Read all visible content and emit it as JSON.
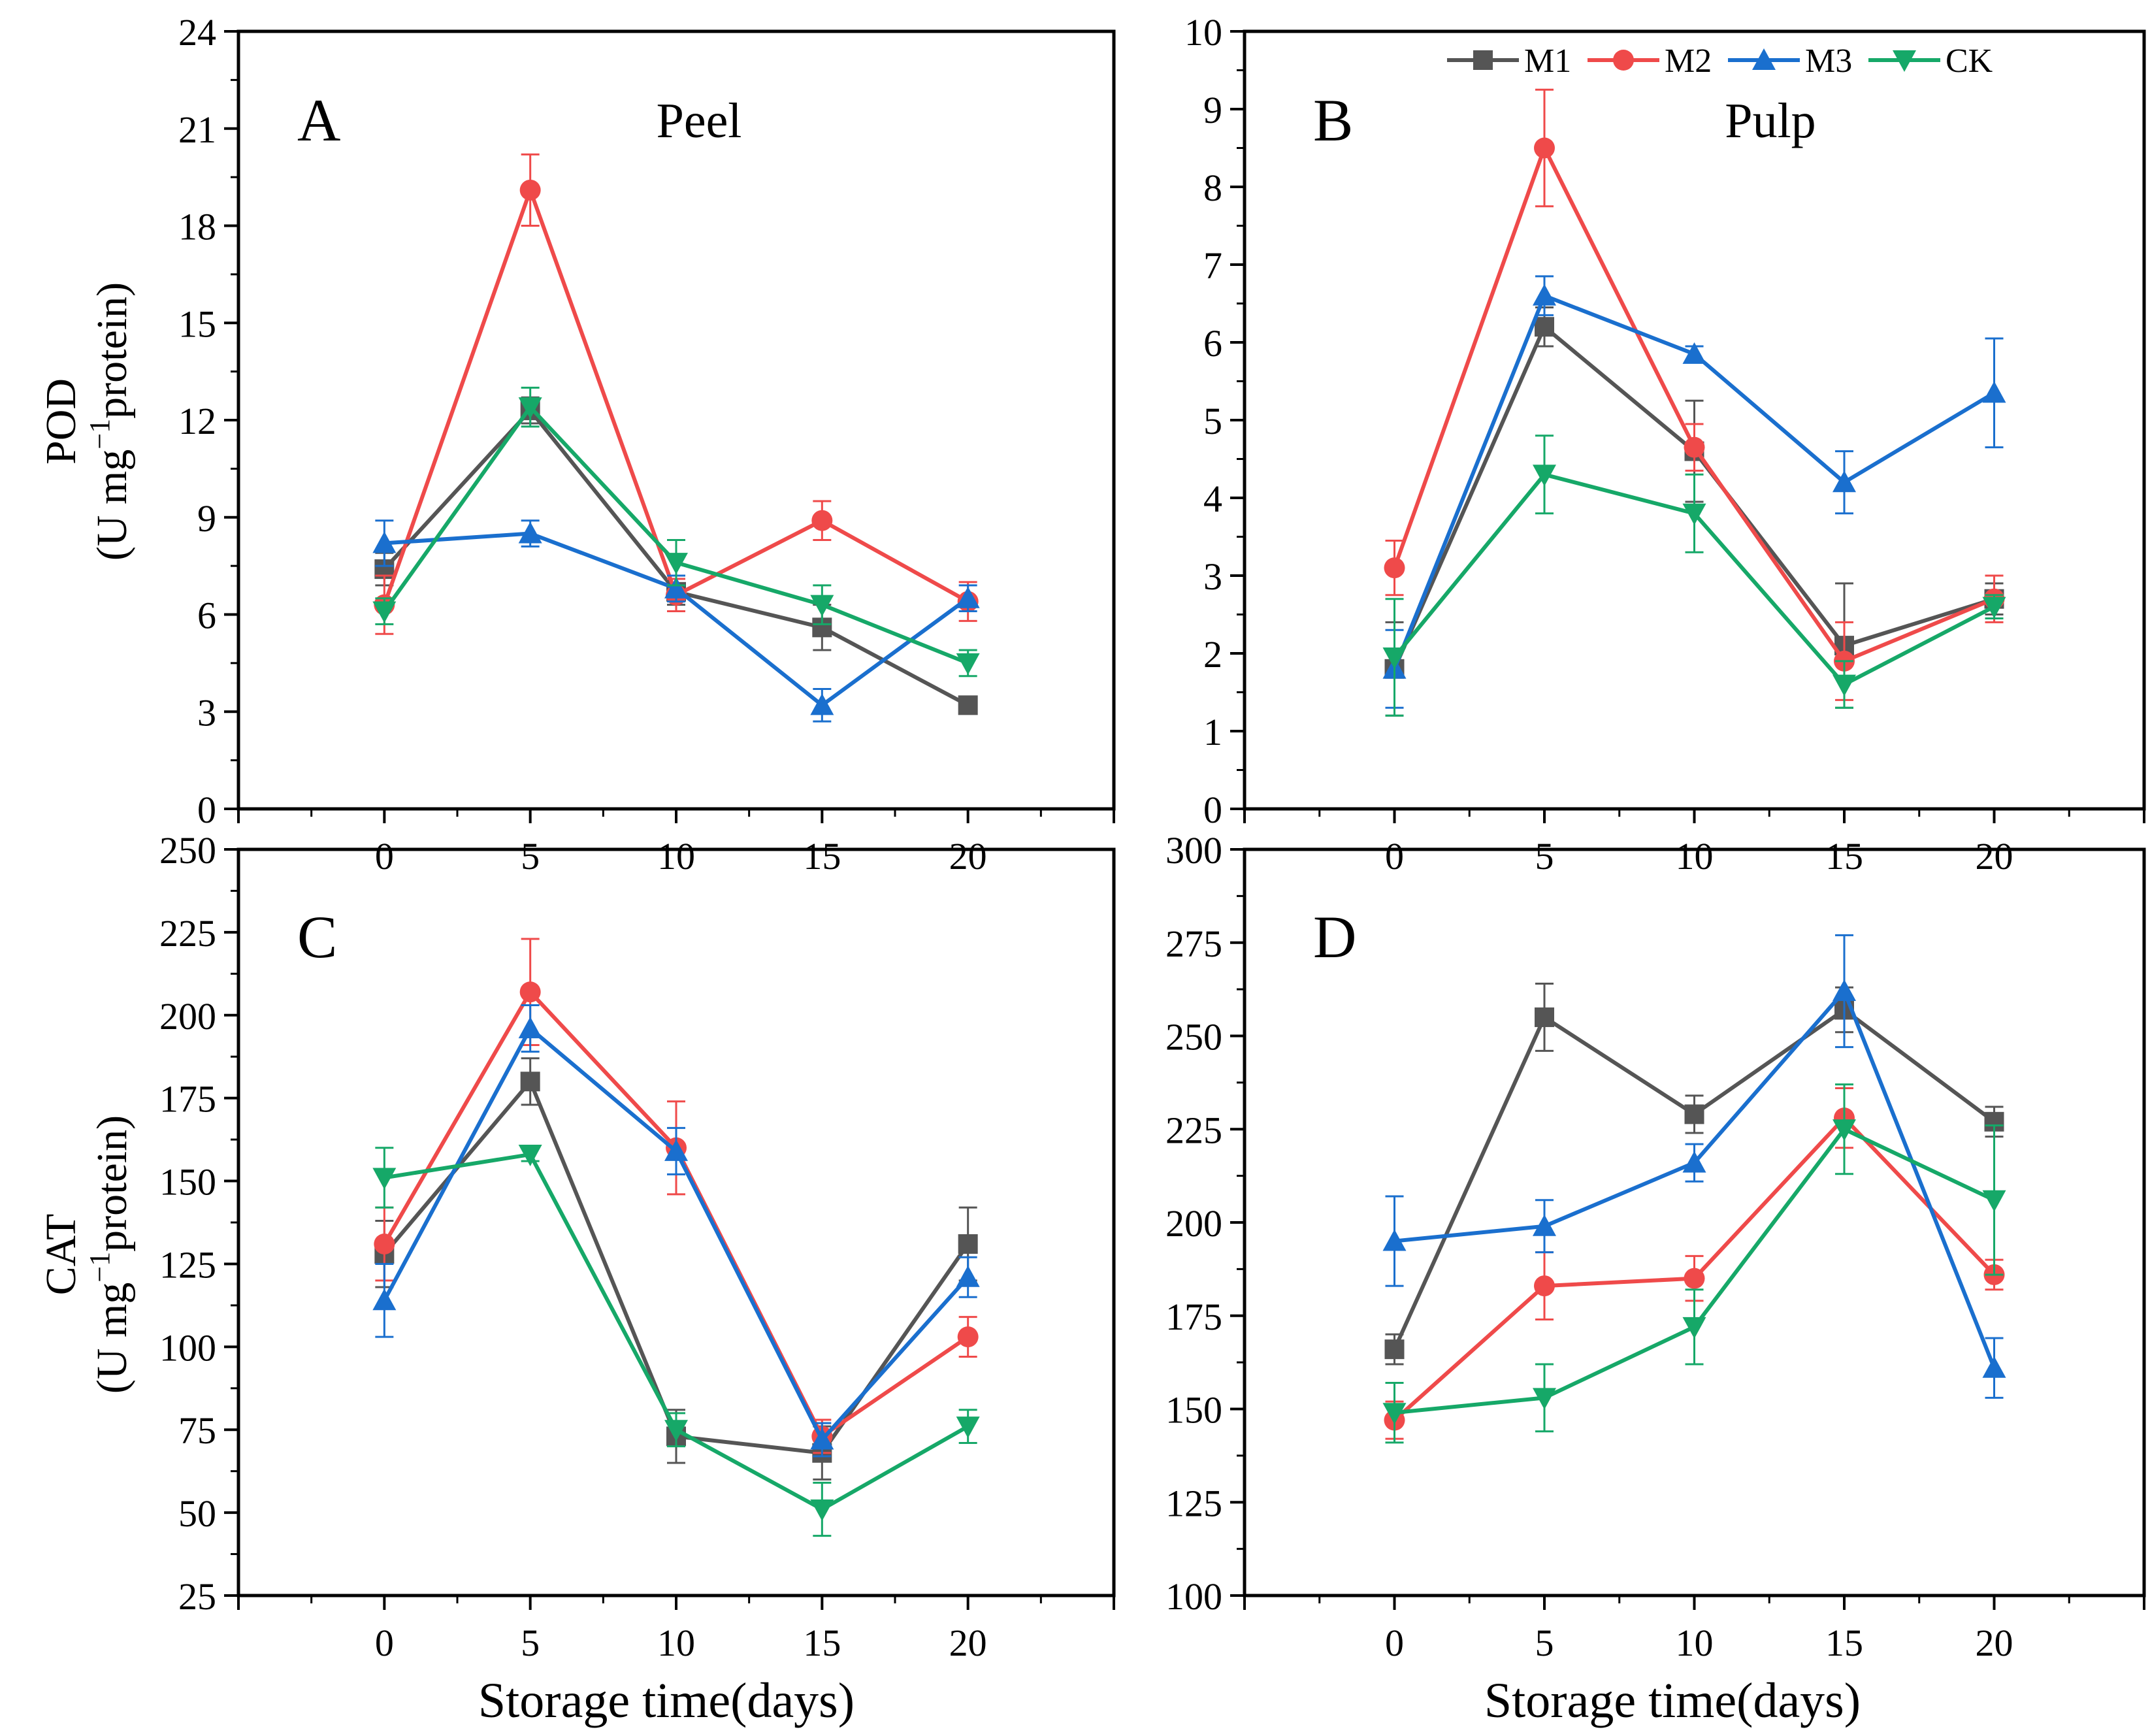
{
  "figure": {
    "legend_labels": [
      "M1",
      "M2",
      "M3",
      "CK"
    ],
    "x_axis_label": "Storage time(days)",
    "row_labels": [
      {
        "line1": "POD",
        "line2_pre": "(U mg",
        "line2_sup": "−1",
        "line2_post": "protein)"
      },
      {
        "line1": "CAT",
        "line2_pre": "(U mg",
        "line2_sup": "−1",
        "line2_post": "protein)"
      }
    ]
  },
  "chart_data": [
    {
      "type": "line",
      "panel": "A",
      "title": "Peel",
      "xlabel": "Storage time(days)",
      "ylabel": "POD (U mg-1 protein)",
      "xlim": [
        -5,
        25
      ],
      "ylim": [
        0,
        24
      ],
      "xticks": [
        0,
        5,
        10,
        15,
        20
      ],
      "yticks": [
        0,
        3,
        6,
        9,
        12,
        15,
        18,
        21,
        24
      ],
      "x": [
        0,
        5,
        10,
        15,
        20
      ],
      "series": [
        {
          "name": "M1",
          "color": "#555555",
          "marker": "square",
          "values": [
            7.4,
            12.3,
            6.7,
            5.6,
            3.2
          ],
          "errors": [
            0.5,
            0.4,
            0.4,
            0.7,
            0.2
          ]
        },
        {
          "name": "M2",
          "color": "#ef4a4a",
          "marker": "circle",
          "values": [
            6.3,
            19.1,
            6.6,
            8.9,
            6.4
          ],
          "errors": [
            0.9,
            1.1,
            0.5,
            0.6,
            0.6
          ]
        },
        {
          "name": "M3",
          "color": "#1a6fce",
          "marker": "triangle",
          "values": [
            8.2,
            8.5,
            6.8,
            3.2,
            6.5
          ],
          "errors": [
            0.7,
            0.4,
            0.4,
            0.5,
            0.4
          ]
        },
        {
          "name": "CK",
          "color": "#16a868",
          "marker": "tri-down",
          "values": [
            6.1,
            12.4,
            7.6,
            6.3,
            4.5
          ],
          "errors": [
            0.4,
            0.6,
            0.7,
            0.6,
            0.4
          ]
        }
      ]
    },
    {
      "type": "line",
      "panel": "B",
      "title": "Pulp",
      "xlabel": "Storage time(days)",
      "ylabel": "POD (U mg-1 protein)",
      "xlim": [
        -5,
        25
      ],
      "ylim": [
        0,
        10
      ],
      "xticks": [
        0,
        5,
        10,
        15,
        20
      ],
      "yticks": [
        0,
        1,
        2,
        3,
        4,
        5,
        6,
        7,
        8,
        9,
        10
      ],
      "x": [
        0,
        5,
        10,
        15,
        20
      ],
      "series": [
        {
          "name": "M1",
          "color": "#555555",
          "marker": "square",
          "values": [
            1.8,
            6.2,
            4.6,
            2.1,
            2.7
          ],
          "errors": [
            0.6,
            0.25,
            0.65,
            0.8,
            0.2
          ]
        },
        {
          "name": "M2",
          "color": "#ef4a4a",
          "marker": "circle",
          "values": [
            3.1,
            8.5,
            4.65,
            1.9,
            2.7
          ],
          "errors": [
            0.35,
            0.75,
            0.3,
            0.5,
            0.3
          ]
        },
        {
          "name": "M3",
          "color": "#1a6fce",
          "marker": "triangle",
          "values": [
            1.8,
            6.6,
            5.85,
            4.2,
            5.35
          ],
          "errors": [
            0.5,
            0.25,
            0.1,
            0.4,
            0.7
          ]
        },
        {
          "name": "CK",
          "color": "#16a868",
          "marker": "tri-down",
          "values": [
            1.95,
            4.3,
            3.8,
            1.6,
            2.6
          ],
          "errors": [
            0.75,
            0.5,
            0.5,
            0.3,
            0.15
          ]
        }
      ]
    },
    {
      "type": "line",
      "panel": "C",
      "title": "",
      "xlabel": "Storage time(days)",
      "ylabel": "CAT (U mg-1 protein)",
      "xlim": [
        -5,
        25
      ],
      "ylim": [
        25,
        250
      ],
      "xticks": [
        0,
        5,
        10,
        15,
        20
      ],
      "yticks": [
        25,
        50,
        75,
        100,
        125,
        150,
        175,
        200,
        225,
        250
      ],
      "x": [
        0,
        5,
        10,
        15,
        20
      ],
      "series": [
        {
          "name": "M1",
          "color": "#555555",
          "marker": "square",
          "values": [
            128,
            180,
            73,
            68,
            131
          ],
          "errors": [
            10,
            7,
            8,
            8,
            11
          ]
        },
        {
          "name": "M2",
          "color": "#ef4a4a",
          "marker": "circle",
          "values": [
            131,
            207,
            160,
            73,
            103
          ],
          "errors": [
            11,
            16,
            14,
            5,
            6
          ]
        },
        {
          "name": "M3",
          "color": "#1a6fce",
          "marker": "triangle",
          "values": [
            114,
            196,
            159,
            72,
            121
          ],
          "errors": [
            11,
            7,
            7,
            5,
            6
          ]
        },
        {
          "name": "CK",
          "color": "#16a868",
          "marker": "tri-down",
          "values": [
            151,
            158,
            75,
            51,
            76
          ],
          "errors": [
            9,
            2,
            5,
            8,
            5
          ]
        }
      ]
    },
    {
      "type": "line",
      "panel": "D",
      "title": "",
      "xlabel": "Storage time(days)",
      "ylabel": "CAT (U mg-1 protein)",
      "xlim": [
        -5,
        25
      ],
      "ylim": [
        100,
        300
      ],
      "xticks": [
        0,
        5,
        10,
        15,
        20
      ],
      "yticks": [
        100,
        125,
        150,
        175,
        200,
        225,
        250,
        275,
        300
      ],
      "x": [
        0,
        5,
        10,
        15,
        20
      ],
      "series": [
        {
          "name": "M1",
          "color": "#555555",
          "marker": "square",
          "values": [
            166,
            255,
            229,
            257,
            227
          ],
          "errors": [
            4,
            9,
            5,
            6,
            4
          ]
        },
        {
          "name": "M2",
          "color": "#ef4a4a",
          "marker": "circle",
          "values": [
            147,
            183,
            185,
            228,
            186
          ],
          "errors": [
            5,
            9,
            6,
            8,
            4
          ]
        },
        {
          "name": "M3",
          "color": "#1a6fce",
          "marker": "triangle",
          "values": [
            195,
            199,
            216,
            262,
            161
          ],
          "errors": [
            12,
            7,
            5,
            15,
            8
          ]
        },
        {
          "name": "CK",
          "color": "#16a868",
          "marker": "tri-down",
          "values": [
            149,
            153,
            172,
            225,
            206
          ],
          "errors": [
            8,
            9,
            10,
            12,
            20
          ]
        }
      ]
    }
  ]
}
